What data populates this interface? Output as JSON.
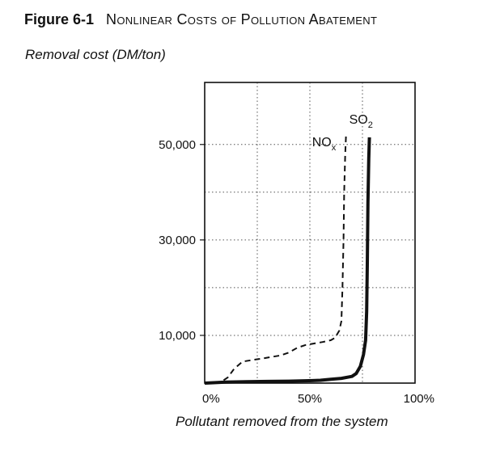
{
  "figure": {
    "number": "Figure 6-1",
    "title": "Nonlinear Costs of Pollution Abatement"
  },
  "chart_data": {
    "type": "line",
    "title": "Figure 6-1 Nonlinear Costs of Pollution Abatement",
    "ylabel": "Removal cost (DM/ton)",
    "xlabel": "Pollutant removed from the system",
    "xlim": [
      0,
      100
    ],
    "ylim": [
      0,
      63000
    ],
    "x_unit": "%",
    "y_ticks": [
      10000,
      30000,
      50000
    ],
    "y_tick_labels": [
      "10,000",
      "30,000",
      "50,000"
    ],
    "x_ticks": [
      0,
      50,
      100
    ],
    "x_tick_labels": [
      "0%",
      "50%",
      "100%"
    ],
    "grid": true,
    "grid_style": "dotted",
    "series": [
      {
        "name": "NOx",
        "label_main": "NO",
        "label_sub": "x",
        "style": "dashed",
        "color": "#111111",
        "x": [
          0,
          8,
          11,
          14,
          18,
          22,
          28,
          32,
          36,
          40,
          44,
          48,
          52,
          56,
          60,
          62,
          64,
          65,
          65.5,
          66,
          66.3,
          66.8,
          67.2
        ],
        "y": [
          0,
          300,
          1200,
          3000,
          4500,
          4800,
          5200,
          5500,
          5800,
          6400,
          7400,
          8000,
          8300,
          8600,
          9000,
          9500,
          11000,
          13000,
          20000,
          30000,
          40000,
          48000,
          52000
        ]
      },
      {
        "name": "SO2",
        "label_main": "SO",
        "label_sub": "2",
        "style": "solid",
        "color": "#111111",
        "x": [
          0,
          10,
          20,
          30,
          40,
          50,
          55,
          60,
          65,
          70,
          72,
          74,
          75.5,
          76.5,
          77,
          77.3,
          77.6,
          78,
          78.3
        ],
        "y": [
          0,
          200,
          300,
          350,
          400,
          500,
          600,
          800,
          1000,
          1400,
          2000,
          3500,
          6000,
          9000,
          15000,
          25000,
          38000,
          47000,
          51500
        ]
      }
    ]
  }
}
